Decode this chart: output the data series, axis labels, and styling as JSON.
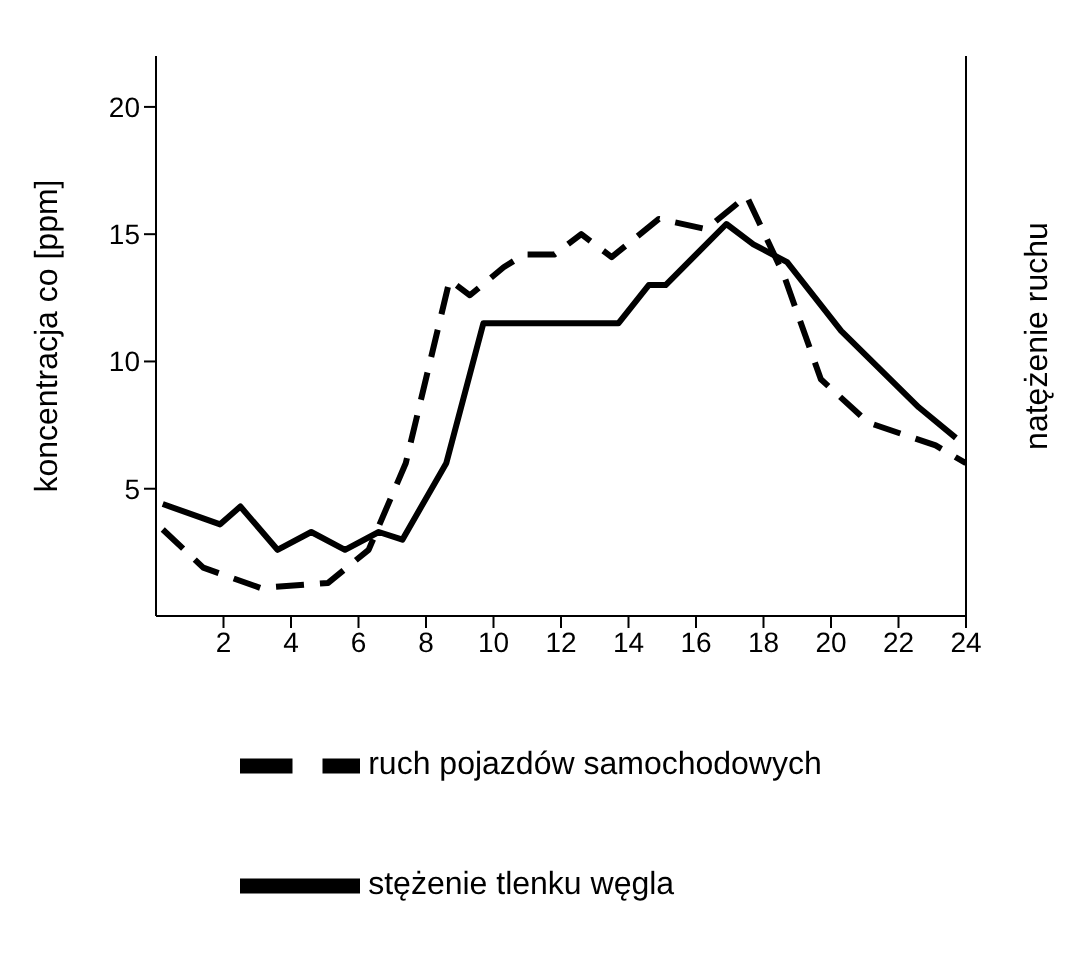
{
  "chart_data": {
    "type": "line",
    "ylabel": "koncentracja co [ppm]",
    "y2label": "natężenie ruchu",
    "xlim": [
      0,
      24
    ],
    "xticks": [
      2,
      4,
      6,
      8,
      10,
      12,
      14,
      16,
      18,
      20,
      22,
      24
    ],
    "ylim": [
      0,
      22
    ],
    "yticks": [
      5,
      10,
      15,
      20
    ],
    "legend": "bottom",
    "marker": "none",
    "series": [
      {
        "name": "ruch pojazdów samochodowych",
        "color": "#000000",
        "line_style": "dashed",
        "x": [
          0.2,
          1.4,
          3.1,
          5.1,
          6.3,
          7.4,
          8.7,
          9.3,
          10.3,
          10.9,
          11.8,
          12.6,
          13.5,
          14.9,
          16.3,
          17.5,
          18.6,
          19.7,
          21.1,
          23.1,
          24
        ],
        "values": [
          3.4,
          1.9,
          1.1,
          1.3,
          2.6,
          6,
          13.2,
          12.6,
          13.7,
          14.2,
          14.2,
          15,
          14.1,
          15.6,
          15.2,
          16.5,
          13.4,
          9.3,
          7.6,
          6.7,
          6
        ]
      },
      {
        "name": "stężenie tlenku węgla",
        "color": "#000000",
        "line_style": "solid",
        "x": [
          0.2,
          1.9,
          2.5,
          3.6,
          4.6,
          5.6,
          6.6,
          7.3,
          8.6,
          9.7,
          13.7,
          14.6,
          15.1,
          16.9,
          17.7,
          18.7,
          20.3,
          22.6,
          23.7
        ],
        "values": [
          4.4,
          3.6,
          4.3,
          2.6,
          3.3,
          2.6,
          3.3,
          3,
          6,
          11.5,
          11.5,
          13,
          13,
          15.4,
          14.6,
          13.9,
          11.2,
          8.2,
          7
        ]
      }
    ]
  }
}
